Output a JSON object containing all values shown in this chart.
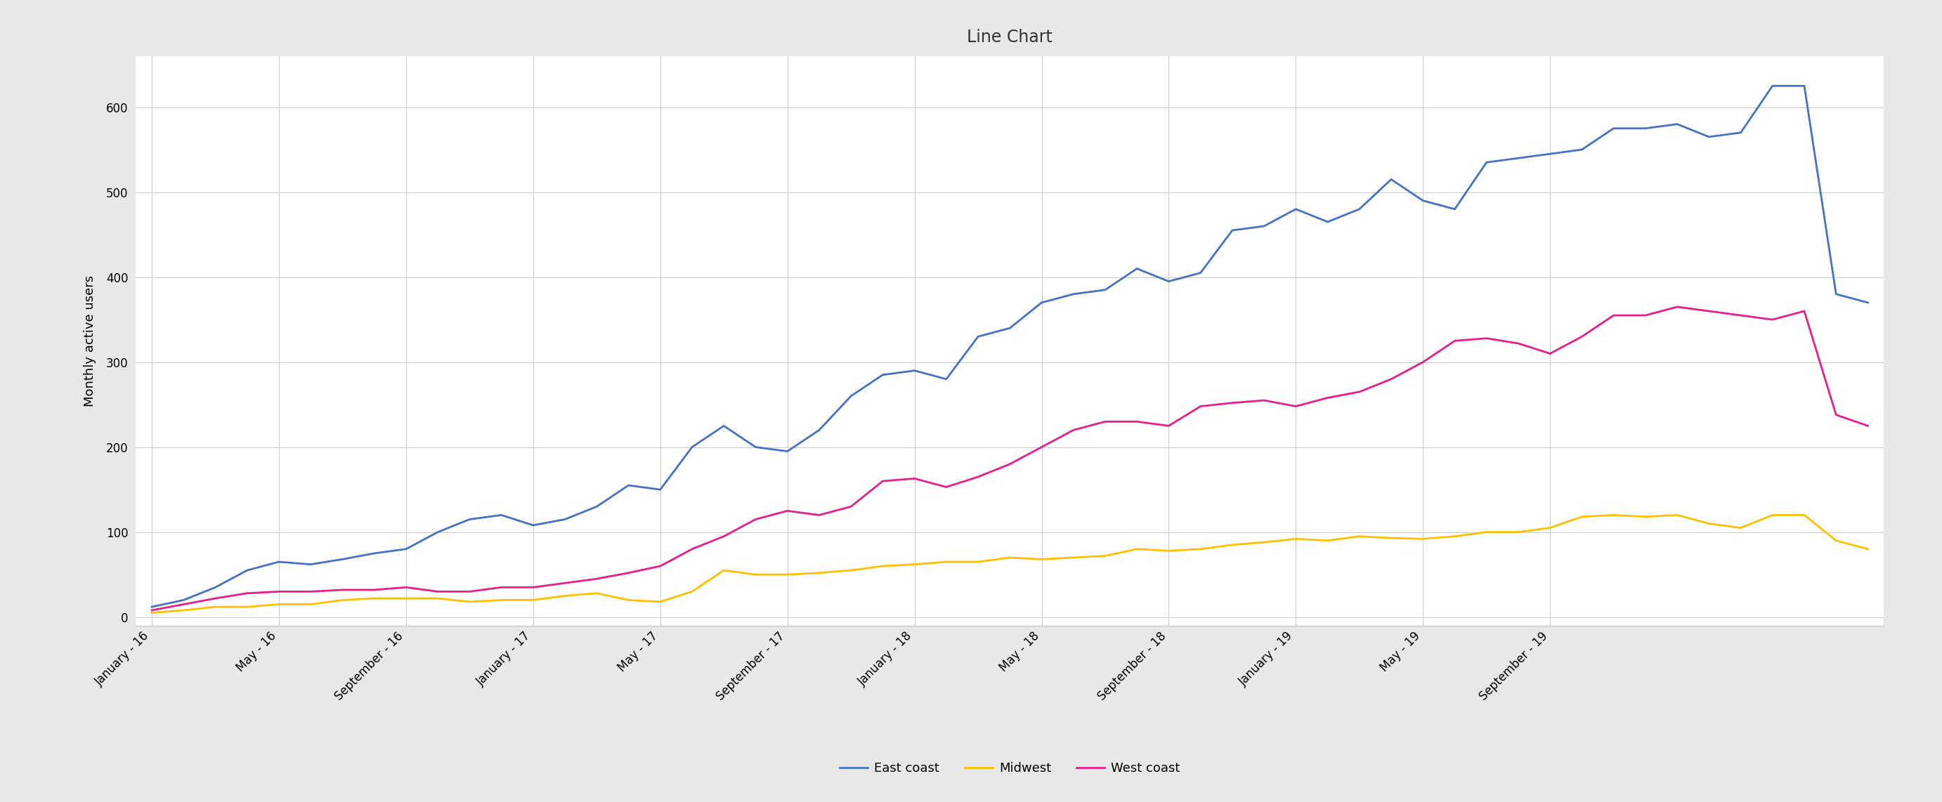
{
  "title": "Line Chart",
  "ylabel": "Monthly active users",
  "outer_bg_color": "#e8e8e8",
  "plot_bg_color": "#ffffff",
  "grid_color": "#cccccc",
  "title_fontsize": 17,
  "axis_fontsize": 12,
  "legend_fontsize": 13,
  "line_width": 2.0,
  "east_coast_color": "#4472C4",
  "midwest_color": "#FFC000",
  "west_coast_color": "#E91E8C",
  "ylim": [
    -10,
    660
  ],
  "yticks": [
    0,
    100,
    200,
    300,
    400,
    500,
    600
  ],
  "east_coast": [
    12,
    20,
    35,
    55,
    65,
    62,
    68,
    75,
    80,
    100,
    115,
    120,
    108,
    115,
    130,
    155,
    150,
    200,
    225,
    200,
    195,
    220,
    260,
    285,
    290,
    280,
    330,
    340,
    370,
    380,
    385,
    410,
    395,
    405,
    455,
    460,
    480,
    465,
    480,
    515,
    490,
    480,
    535,
    540,
    545,
    550,
    575,
    575,
    580,
    565,
    570,
    625,
    625,
    380,
    370
  ],
  "midwest": [
    5,
    8,
    12,
    12,
    15,
    15,
    20,
    22,
    22,
    22,
    18,
    20,
    20,
    25,
    28,
    20,
    18,
    30,
    55,
    50,
    50,
    52,
    55,
    60,
    62,
    65,
    65,
    70,
    68,
    70,
    72,
    80,
    78,
    80,
    85,
    88,
    92,
    90,
    95,
    93,
    92,
    95,
    100,
    100,
    105,
    118,
    120,
    118,
    120,
    110,
    105,
    120,
    120,
    90,
    80
  ],
  "west_coast": [
    8,
    15,
    22,
    28,
    30,
    30,
    32,
    32,
    35,
    30,
    30,
    35,
    35,
    40,
    45,
    52,
    60,
    80,
    95,
    115,
    125,
    120,
    130,
    160,
    163,
    153,
    165,
    180,
    200,
    220,
    230,
    230,
    225,
    248,
    252,
    255,
    248,
    258,
    265,
    280,
    300,
    325,
    328,
    322,
    310,
    330,
    355,
    355,
    365,
    360,
    355,
    350,
    360,
    238,
    225
  ],
  "x_tick_labels": [
    "January - 16",
    "May - 16",
    "September - 16",
    "January - 17",
    "May - 17",
    "September - 17",
    "January - 18",
    "May - 18",
    "September - 18",
    "January - 19",
    "May - 19",
    "September - 19"
  ],
  "x_tick_positions": [
    0,
    4,
    8,
    12,
    16,
    20,
    24,
    28,
    32,
    36,
    40,
    44
  ]
}
